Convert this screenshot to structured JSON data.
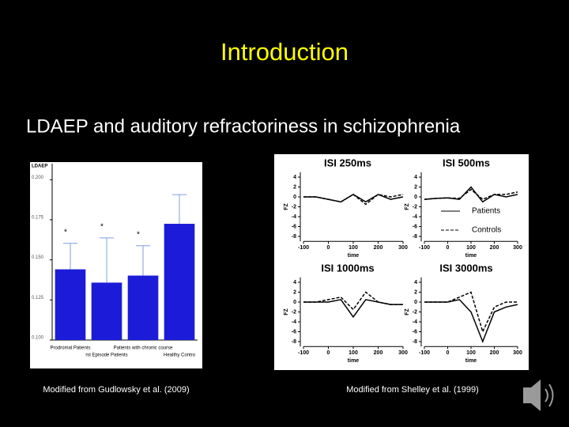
{
  "slide": {
    "title": "Introduction",
    "subtitle": "LDAEP and auditory refractoriness in schizophrenia",
    "captions": [
      "Modified from Gudlowsky et al. (2009)",
      "Modified from Shelley et al. (1999)"
    ]
  },
  "chart_data": [
    {
      "type": "bar",
      "y_label": "LDAEP",
      "categories": [
        "Prodromal Patients",
        "rst Episode Patients",
        "Patients with chronic course",
        "Healthy Contro"
      ],
      "values": [
        0.1441,
        0.1358,
        0.1402,
        0.1725
      ],
      "errors": [
        0.0162,
        0.0279,
        0.0186,
        0.0182
      ],
      "annotations": [
        "*",
        "*",
        "*",
        null
      ],
      "color": "#1c1cd8",
      "error_color": "#7f9fe0",
      "ylim": [
        0.1,
        0.21
      ],
      "yticks": [
        {
          "value": 0.1,
          "label": "0.100"
        },
        {
          "value": 0.125,
          "label": "0.125"
        },
        {
          "value": 0.15,
          "label": "0.150"
        },
        {
          "value": 0.175,
          "label": "0.175"
        },
        {
          "value": 0.2,
          "label": "0.200"
        }
      ]
    },
    {
      "type": "line",
      "title": "ISI 250ms",
      "y_label": "FZ",
      "x_label": "time",
      "x": [
        -100,
        -50,
        0,
        50,
        100,
        150,
        200,
        250,
        300
      ],
      "series": [
        {
          "color": "#000000",
          "dash": false,
          "values": [
            0,
            0,
            -0.5,
            -1,
            0.5,
            -1,
            0.5,
            -0.5,
            0
          ]
        },
        {
          "color": "#000000",
          "dash": true,
          "values": [
            0,
            0,
            -0.5,
            -1,
            0.5,
            -1.5,
            0.5,
            0,
            0.5
          ]
        }
      ],
      "xlim": [
        -100,
        300
      ],
      "ylim": [
        -9,
        5
      ],
      "xticks": [
        -100,
        0,
        100,
        200,
        300
      ],
      "yticks": [
        4,
        2,
        0,
        -2,
        -4,
        -6,
        -8
      ]
    },
    {
      "type": "line",
      "title": "ISI 500ms",
      "y_label": "FZ",
      "x_label": "time",
      "x": [
        -100,
        -50,
        0,
        50,
        100,
        150,
        200,
        250,
        300
      ],
      "series": [
        {
          "name": "Patients",
          "color": "#000000",
          "dash": false,
          "values": [
            -0.5,
            -0.3,
            -0.2,
            -0.5,
            2,
            -1,
            0.5,
            0,
            0.5
          ]
        },
        {
          "name": "Controls",
          "color": "#000000",
          "dash": true,
          "values": [
            -0.5,
            -0.3,
            -0.2,
            -0.3,
            1.5,
            -0.5,
            0.5,
            0.5,
            1
          ]
        }
      ],
      "xlim": [
        -100,
        300
      ],
      "ylim": [
        -9,
        5
      ],
      "xticks": [
        -100,
        0,
        100,
        200,
        300
      ],
      "yticks": [
        4,
        2,
        0,
        -2,
        -4,
        -6,
        -8
      ]
    },
    {
      "type": "line",
      "title": "ISI 1000ms",
      "y_label": "FZ",
      "x_label": "time",
      "x": [
        -100,
        -50,
        0,
        50,
        100,
        150,
        200,
        250,
        300
      ],
      "series": [
        {
          "color": "#000000",
          "dash": false,
          "values": [
            0,
            0,
            0,
            0.5,
            -3,
            0.5,
            0,
            -0.5,
            -0.5
          ]
        },
        {
          "color": "#000000",
          "dash": true,
          "values": [
            0,
            0,
            0.5,
            1,
            -1.5,
            2,
            0,
            -0.5,
            -0.5
          ]
        }
      ],
      "xlim": [
        -100,
        300
      ],
      "ylim": [
        -9,
        5
      ],
      "xticks": [
        -100,
        0,
        100,
        200,
        300
      ],
      "yticks": [
        4,
        2,
        0,
        -2,
        -4,
        -6,
        -8
      ]
    },
    {
      "type": "line",
      "title": "ISI 3000ms",
      "y_label": "FZ",
      "x_label": "time",
      "x": [
        -100,
        -50,
        0,
        50,
        100,
        150,
        200,
        250,
        300
      ],
      "series": [
        {
          "color": "#000000",
          "dash": false,
          "values": [
            0,
            0,
            0,
            0.5,
            -2,
            -8,
            -2,
            -1,
            -0.5
          ]
        },
        {
          "color": "#000000",
          "dash": true,
          "values": [
            0,
            0,
            0,
            1,
            2,
            -6,
            -1,
            0,
            0
          ]
        }
      ],
      "xlim": [
        -100,
        300
      ],
      "ylim": [
        -9,
        5
      ],
      "xticks": [
        -100,
        0,
        100,
        200,
        300
      ],
      "yticks": [
        4,
        2,
        0,
        -2,
        -4,
        -6,
        -8
      ]
    }
  ]
}
